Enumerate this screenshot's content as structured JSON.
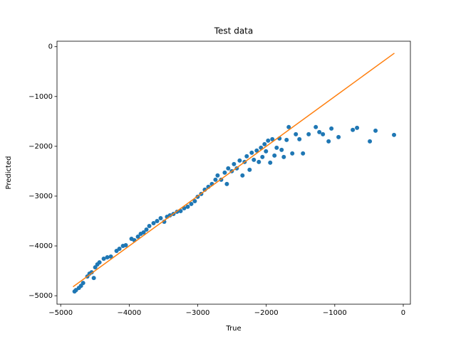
{
  "chart_data": {
    "type": "scatter",
    "title": "Test data",
    "x_label": "True",
    "y_label": "Predicted",
    "color": "#1f77b4",
    "x": [
      -4798,
      -4777,
      -4735,
      -4704,
      -4673,
      -4611,
      -4580,
      -4548,
      -4517,
      -4496,
      -4465,
      -4434,
      -4372,
      -4320,
      -4268,
      -4185,
      -4143,
      -4091,
      -4050,
      -3967,
      -3925,
      -3873,
      -3832,
      -3790,
      -3749,
      -3707,
      -3645,
      -3593,
      -3541,
      -3489,
      -3448,
      -3406,
      -3354,
      -3302,
      -3250,
      -3198,
      -3146,
      -3094,
      -3043,
      -3001,
      -2949,
      -2897,
      -2845,
      -2793,
      -2741,
      -2710,
      -2658,
      -2606,
      -2575,
      -2555,
      -2503,
      -2471,
      -2430,
      -2388,
      -2347,
      -2316,
      -2285,
      -2243,
      -2212,
      -2181,
      -2139,
      -2108,
      -2077,
      -2056,
      -2025,
      -2004,
      -1973,
      -1942,
      -1911,
      -1880,
      -1848,
      -1807,
      -1776,
      -1744,
      -1703,
      -1672,
      -1620,
      -1568,
      -1516,
      -1464,
      -1381,
      -1277,
      -1225,
      -1173,
      -1090,
      -1049,
      -945,
      -737,
      -675,
      -488,
      -405,
      -135
    ],
    "values": [
      -4914,
      -4886,
      -4843,
      -4800,
      -4743,
      -4614,
      -4557,
      -4529,
      -4643,
      -4429,
      -4371,
      -4329,
      -4257,
      -4229,
      -4214,
      -4100,
      -4057,
      -4000,
      -3986,
      -3857,
      -3886,
      -3814,
      -3757,
      -3729,
      -3671,
      -3600,
      -3543,
      -3500,
      -3443,
      -3514,
      -3414,
      -3386,
      -3357,
      -3314,
      -3300,
      -3243,
      -3214,
      -3157,
      -3100,
      -3014,
      -2957,
      -2871,
      -2814,
      -2757,
      -2671,
      -2586,
      -2671,
      -2529,
      -2757,
      -2443,
      -2500,
      -2357,
      -2443,
      -2286,
      -2586,
      -2314,
      -2200,
      -2471,
      -2129,
      -2271,
      -2086,
      -2314,
      -2029,
      -2214,
      -1957,
      -2100,
      -1886,
      -2329,
      -1857,
      -2186,
      -2029,
      -1843,
      -2071,
      -2214,
      -1871,
      -1614,
      -2143,
      -1757,
      -1857,
      -2143,
      -1757,
      -1614,
      -1714,
      -1757,
      -1900,
      -1643,
      -1814,
      -1671,
      -1629,
      -1900,
      -1686,
      -1771
    ],
    "line": {
      "color": "#ff7f0e",
      "x": [
        -4820,
        -130
      ],
      "values": [
        -4820,
        -130
      ]
    },
    "xlim": [
      -5054,
      104
    ],
    "ylim": [
      -5170,
      110
    ],
    "xticks": [
      {
        "value": -5000,
        "label": "−5000"
      },
      {
        "value": -4000,
        "label": "−4000"
      },
      {
        "value": -3000,
        "label": "−3000"
      },
      {
        "value": -2000,
        "label": "−2000"
      },
      {
        "value": -1000,
        "label": "−1000"
      },
      0
    ],
    "yticks": [
      {
        "value": -5000,
        "label": "−5000"
      },
      {
        "value": -4000,
        "label": "−4000"
      },
      {
        "value": -3000,
        "label": "−3000"
      },
      {
        "value": -2000,
        "label": "−2000"
      },
      {
        "value": -1000,
        "label": "−1000"
      },
      0
    ]
  }
}
